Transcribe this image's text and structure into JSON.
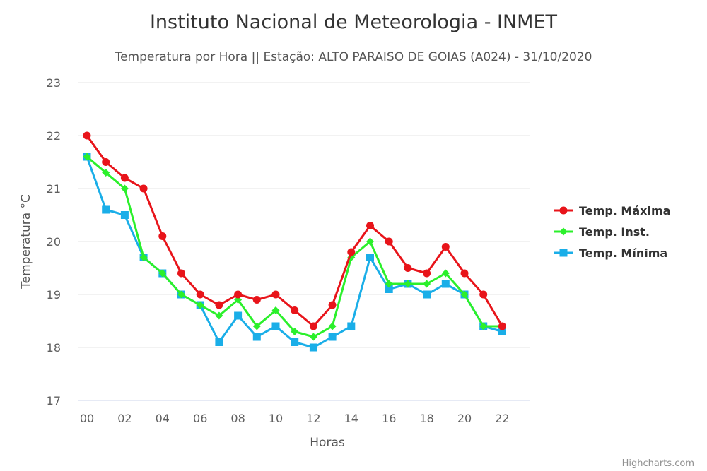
{
  "credits": "Highcharts.com",
  "colors": {
    "grid": "#e6e6e6",
    "axis_line": "#ccd6eb",
    "max": "#e8141a",
    "inst": "#2bf02b",
    "min": "#1aaee8"
  },
  "chart_data": {
    "type": "line",
    "title": "Instituto Nacional de Meteorologia - INMET",
    "subtitle": "Temperatura por Hora || Estação: ALTO PARAISO DE GOIAS (A024) - 31/10/2020",
    "xlabel": "Horas",
    "ylabel": "Temperatura °C",
    "ylim": [
      17,
      23
    ],
    "yticks": [
      "17",
      "18",
      "19",
      "20",
      "21",
      "22",
      "23"
    ],
    "x": [
      0,
      1,
      2,
      3,
      4,
      5,
      6,
      7,
      8,
      9,
      10,
      11,
      12,
      13,
      14,
      15,
      16,
      17,
      18,
      19,
      20,
      21,
      22
    ],
    "xticks": [
      {
        "x": 0,
        "label": "00"
      },
      {
        "x": 2,
        "label": "02"
      },
      {
        "x": 4,
        "label": "04"
      },
      {
        "x": 6,
        "label": "06"
      },
      {
        "x": 8,
        "label": "08"
      },
      {
        "x": 10,
        "label": "10"
      },
      {
        "x": 12,
        "label": "12"
      },
      {
        "x": 14,
        "label": "14"
      },
      {
        "x": 16,
        "label": "16"
      },
      {
        "x": 18,
        "label": "18"
      },
      {
        "x": 20,
        "label": "20"
      },
      {
        "x": 22,
        "label": "22"
      }
    ],
    "legend_position": "right",
    "series": [
      {
        "key": "max",
        "name": "Temp. Máxima",
        "marker": "circle",
        "values": [
          22.0,
          21.5,
          21.2,
          21.0,
          20.1,
          19.4,
          19.0,
          18.8,
          19.0,
          18.9,
          19.0,
          18.7,
          18.4,
          18.8,
          19.8,
          20.3,
          20.0,
          19.5,
          19.4,
          19.9,
          19.4,
          19.0,
          18.4
        ]
      },
      {
        "key": "inst",
        "name": "Temp. Inst.",
        "marker": "diamond",
        "values": [
          21.6,
          21.3,
          21.0,
          19.7,
          19.4,
          19.0,
          18.8,
          18.6,
          18.9,
          18.4,
          18.7,
          18.3,
          18.2,
          18.4,
          19.7,
          20.0,
          19.2,
          19.2,
          19.2,
          19.4,
          19.0,
          18.4,
          18.4
        ]
      },
      {
        "key": "min",
        "name": "Temp. Mínima",
        "marker": "square",
        "values": [
          21.6,
          20.6,
          20.5,
          19.7,
          19.4,
          19.0,
          18.8,
          18.1,
          18.6,
          18.2,
          18.4,
          18.1,
          18.0,
          18.2,
          18.4,
          19.7,
          19.1,
          19.2,
          19.0,
          19.2,
          19.0,
          18.4,
          18.3
        ]
      }
    ]
  }
}
